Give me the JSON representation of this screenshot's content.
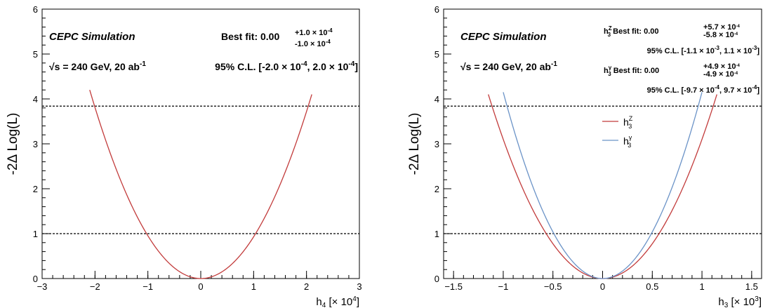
{
  "colors": {
    "red": "#c23b3b",
    "blue": "#6b93c7",
    "dashed": "#000000"
  },
  "chart_data": [
    {
      "type": "line",
      "ylabel": "-2Δ Log(L)",
      "xlabel_main": "h",
      "xlabel_sub": "4",
      "xlabel_unit": " [× 10",
      "xlabel_exp": "4",
      "xlabel_close": "]",
      "xlim": [
        -3,
        3
      ],
      "ylim": [
        0,
        6
      ],
      "xticks": [
        "−3",
        "−2",
        "−1",
        "0",
        "1",
        "2",
        "3"
      ],
      "yticks": [
        "0",
        "1",
        "2",
        "3",
        "4",
        "5",
        "6"
      ],
      "reference_lines": [
        1.0,
        3.84
      ],
      "series": [
        {
          "x": [
            -2.1,
            -1.5,
            -1.0,
            -0.5,
            0,
            0.5,
            1.0,
            1.5,
            2.1
          ],
          "y": [
            4.2,
            2.1,
            0.95,
            0.24,
            0,
            0.24,
            0.95,
            2.1,
            4.1
          ],
          "color": "red"
        }
      ],
      "annotations": {
        "experiment": "CEPC  Simulation",
        "energy": "√s = 240 GeV, 20 ab",
        "energy_exp": "-1",
        "bestfit_label": "Best fit: 0.00",
        "bestfit_up": "+1.0 × 10",
        "bestfit_up_exp": "-4",
        "bestfit_down": "-1.0 × 10",
        "bestfit_down_exp": "-4",
        "cl": "95% C.L. [-2.0 × 10",
        "cl_exp1": "-4",
        "cl_mid": ", 2.0 × 10",
        "cl_exp2": "-4",
        "cl_end": "]"
      }
    },
    {
      "type": "line",
      "ylabel": "-2Δ Log(L)",
      "xlabel_main": "h",
      "xlabel_sub": "3",
      "xlabel_unit": " [× 10",
      "xlabel_exp": "3",
      "xlabel_close": "]",
      "xlim": [
        -1.6,
        1.6
      ],
      "ylim": [
        0,
        6
      ],
      "xticks": [
        "−1.5",
        "−1",
        "−0.5",
        "0",
        "0.5",
        "1",
        "1.5"
      ],
      "yticks": [
        "0",
        "1",
        "2",
        "3",
        "4",
        "5",
        "6"
      ],
      "reference_lines": [
        1.0,
        3.84
      ],
      "series": [
        {
          "name_main": "h",
          "name_sub": "3",
          "name_sup": "Z",
          "x": [
            -1.15,
            -0.8,
            -0.5,
            -0.25,
            0,
            0.25,
            0.5,
            0.8,
            1.15
          ],
          "y": [
            4.1,
            1.95,
            0.78,
            0.19,
            0,
            0.19,
            0.78,
            1.95,
            4.1
          ],
          "color": "red"
        },
        {
          "name_main": "h",
          "name_sub": "3",
          "name_sup": "γ",
          "x": [
            -1.0,
            -0.75,
            -0.5,
            -0.25,
            0,
            0.25,
            0.5,
            0.75,
            1.0
          ],
          "y": [
            4.15,
            2.35,
            1.04,
            0.26,
            0,
            0.26,
            1.04,
            2.35,
            4.15
          ],
          "color": "blue"
        }
      ],
      "annotations": {
        "experiment": "CEPC  Simulation",
        "energy": "√s = 240 GeV, 20 ab",
        "energy_exp": "-1",
        "z_prefix": "h",
        "z_sub": "3",
        "z_sup": "Z",
        "z_bestfit": " Best fit: 0.00",
        "z_up": "+5.7 × 10",
        "z_up_exp": "-4",
        "z_down": "-5.8 × 10",
        "z_down_exp": "-4",
        "z_cl": "95% C.L. [-1.1 × 10",
        "z_cl_exp1": "-3",
        "z_cl_mid": ", 1.1 × 10",
        "z_cl_exp2": "-3",
        "z_cl_end": "]",
        "g_prefix": "h",
        "g_sub": "3",
        "g_sup": "γ",
        "g_bestfit": " Best fit: 0.00",
        "g_up": "+4.9 × 10",
        "g_up_exp": "-4",
        "g_down": "-4.9 × 10",
        "g_down_exp": "-4",
        "g_cl": "95% C.L. [-9.7 × 10",
        "g_cl_exp1": "-4",
        "g_cl_mid": ", 9.7 × 10",
        "g_cl_exp2": "-4",
        "g_cl_end": "]"
      }
    }
  ]
}
